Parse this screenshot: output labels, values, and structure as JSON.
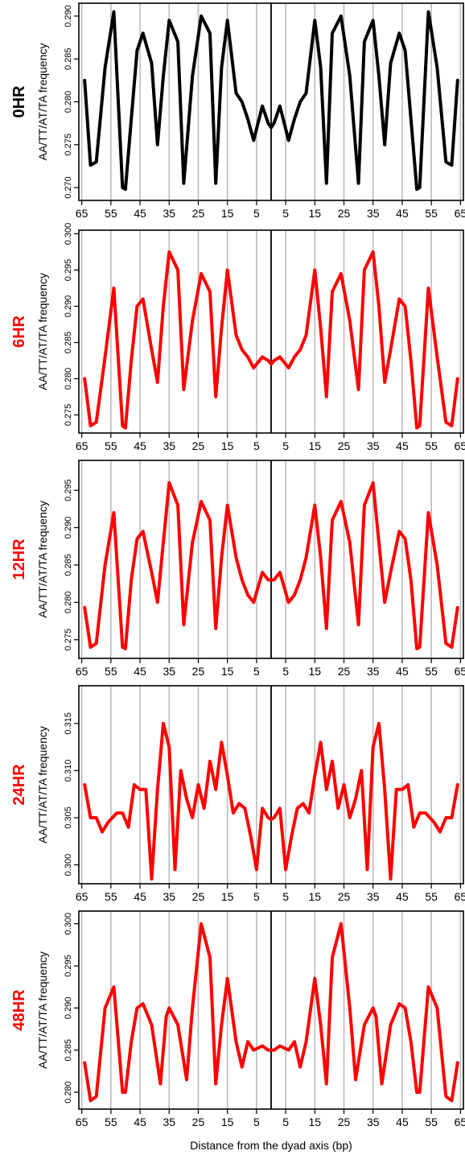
{
  "figure": {
    "xlabel": "Distance from the dyad axis (bp)",
    "colors": {
      "first": "#000000",
      "rest": "#ff0000",
      "grid": "#bbbbbb",
      "axis": "#000000"
    }
  },
  "chart_data": [
    {
      "type": "line",
      "panel_label": "0HR",
      "ylabel": "AA/TT/AT/TA frequency",
      "color": "#000000",
      "grid": true,
      "xlim": [
        -66,
        66
      ],
      "ylim": [
        0.2685,
        0.2915
      ],
      "y_ticks": [
        0.27,
        0.275,
        0.28,
        0.285,
        0.29
      ],
      "y_tick_labels": [
        "0.270",
        "0.275",
        "0.280",
        "0.285",
        "0.290"
      ],
      "x_ticks": [
        -65,
        -55,
        -45,
        -35,
        -25,
        -15,
        -5,
        5,
        15,
        25,
        35,
        45,
        55,
        65
      ],
      "x_tick_labels": [
        "65",
        "55",
        "45",
        "35",
        "25",
        "15",
        "5",
        "5",
        "15",
        "25",
        "35",
        "45",
        "55",
        "65"
      ],
      "x": [
        -64,
        -62,
        -60,
        -57,
        -54,
        -51,
        -50,
        -48,
        -46,
        -44,
        -41,
        -39,
        -37,
        -35,
        -32,
        -30,
        -27,
        -24,
        -21,
        -19,
        -17,
        -15,
        -12,
        -10,
        -8,
        -6,
        -3,
        -1,
        0,
        1,
        3,
        6,
        8,
        10,
        12,
        15,
        17,
        19,
        21,
        24,
        27,
        30,
        32,
        35,
        37,
        39,
        41,
        44,
        46,
        48,
        50,
        51,
        54,
        57,
        60,
        62,
        64
      ],
      "y": [
        0.2825,
        0.2726,
        0.273,
        0.284,
        0.2905,
        0.27,
        0.2698,
        0.278,
        0.286,
        0.288,
        0.2845,
        0.275,
        0.283,
        0.2895,
        0.287,
        0.2705,
        0.283,
        0.29,
        0.288,
        0.2705,
        0.284,
        0.2895,
        0.281,
        0.28,
        0.278,
        0.2755,
        0.2795,
        0.2775,
        0.277,
        0.2775,
        0.2795,
        0.2755,
        0.278,
        0.28,
        0.281,
        0.2895,
        0.284,
        0.2705,
        0.288,
        0.29,
        0.283,
        0.2705,
        0.287,
        0.2895,
        0.283,
        0.275,
        0.2845,
        0.288,
        0.286,
        0.278,
        0.2698,
        0.27,
        0.2905,
        0.284,
        0.273,
        0.2726,
        0.2825
      ]
    },
    {
      "type": "line",
      "panel_label": "6HR",
      "ylabel": "AA/TT/AT/TA frequency",
      "color": "#ff0000",
      "grid": true,
      "xlim": [
        -66,
        66
      ],
      "ylim": [
        0.2725,
        0.3005
      ],
      "y_ticks": [
        0.275,
        0.28,
        0.285,
        0.29,
        0.295,
        0.3
      ],
      "y_tick_labels": [
        "0.275",
        "0.280",
        "0.285",
        "0.290",
        "0.295",
        "0.300"
      ],
      "x_ticks": [
        -65,
        -55,
        -45,
        -35,
        -25,
        -15,
        -5,
        5,
        15,
        25,
        35,
        45,
        55,
        65
      ],
      "x_tick_labels": [
        "65",
        "55",
        "45",
        "35",
        "25",
        "15",
        "5",
        "5",
        "15",
        "25",
        "35",
        "45",
        "55",
        "65"
      ],
      "x": [
        -64,
        -62,
        -60,
        -57,
        -54,
        -51,
        -50,
        -48,
        -46,
        -44,
        -41,
        -39,
        -37,
        -35,
        -32,
        -30,
        -27,
        -24,
        -21,
        -19,
        -17,
        -15,
        -12,
        -10,
        -8,
        -6,
        -3,
        -1,
        0,
        1,
        3,
        6,
        8,
        10,
        12,
        15,
        17,
        19,
        21,
        24,
        27,
        30,
        32,
        35,
        37,
        39,
        41,
        44,
        46,
        48,
        50,
        51,
        54,
        57,
        60,
        62,
        64
      ],
      "y": [
        0.28,
        0.2735,
        0.274,
        0.283,
        0.2925,
        0.2735,
        0.2732,
        0.2825,
        0.29,
        0.291,
        0.284,
        0.2795,
        0.29,
        0.2975,
        0.295,
        0.2785,
        0.288,
        0.2945,
        0.292,
        0.2775,
        0.287,
        0.295,
        0.286,
        0.284,
        0.283,
        0.2815,
        0.283,
        0.2825,
        0.282,
        0.2825,
        0.283,
        0.2815,
        0.283,
        0.284,
        0.286,
        0.295,
        0.287,
        0.2775,
        0.292,
        0.2945,
        0.288,
        0.2785,
        0.295,
        0.2975,
        0.29,
        0.2795,
        0.284,
        0.291,
        0.29,
        0.2825,
        0.2732,
        0.2735,
        0.2925,
        0.283,
        0.274,
        0.2735,
        0.28
      ]
    },
    {
      "type": "line",
      "panel_label": "12HR",
      "ylabel": "AA/TT/AT/TA frequency",
      "color": "#ff0000",
      "grid": true,
      "xlim": [
        -66,
        66
      ],
      "ylim": [
        0.2725,
        0.299
      ],
      "y_ticks": [
        0.275,
        0.28,
        0.285,
        0.29,
        0.295
      ],
      "y_tick_labels": [
        "0.275",
        "0.280",
        "0.285",
        "0.290",
        "0.295"
      ],
      "x_ticks": [
        -65,
        -55,
        -45,
        -35,
        -25,
        -15,
        -5,
        5,
        15,
        25,
        35,
        45,
        55,
        65
      ],
      "x_tick_labels": [
        "65",
        "55",
        "45",
        "35",
        "25",
        "15",
        "5",
        "5",
        "15",
        "25",
        "35",
        "45",
        "55",
        "65"
      ],
      "x": [
        -64,
        -62,
        -60,
        -57,
        -54,
        -51,
        -50,
        -48,
        -46,
        -44,
        -41,
        -39,
        -37,
        -35,
        -32,
        -30,
        -27,
        -24,
        -21,
        -19,
        -17,
        -15,
        -12,
        -10,
        -8,
        -6,
        -3,
        -1,
        0,
        1,
        3,
        6,
        8,
        10,
        12,
        15,
        17,
        19,
        21,
        24,
        27,
        30,
        32,
        35,
        37,
        39,
        41,
        44,
        46,
        48,
        50,
        51,
        54,
        57,
        60,
        62,
        64
      ],
      "y": [
        0.2793,
        0.274,
        0.2745,
        0.285,
        0.292,
        0.274,
        0.2738,
        0.283,
        0.2885,
        0.2895,
        0.284,
        0.28,
        0.288,
        0.296,
        0.293,
        0.277,
        0.288,
        0.2935,
        0.291,
        0.2765,
        0.286,
        0.293,
        0.286,
        0.283,
        0.281,
        0.28,
        0.284,
        0.283,
        0.283,
        0.283,
        0.284,
        0.28,
        0.281,
        0.283,
        0.286,
        0.293,
        0.286,
        0.2765,
        0.291,
        0.2935,
        0.288,
        0.277,
        0.293,
        0.296,
        0.288,
        0.28,
        0.284,
        0.2895,
        0.2885,
        0.283,
        0.2738,
        0.274,
        0.292,
        0.285,
        0.2745,
        0.274,
        0.2793
      ]
    },
    {
      "type": "line",
      "panel_label": "24HR",
      "ylabel": "AA/TT/AT/TA frequency",
      "color": "#ff0000",
      "grid": true,
      "xlim": [
        -66,
        66
      ],
      "ylim": [
        0.298,
        0.319
      ],
      "y_ticks": [
        0.3,
        0.305,
        0.31,
        0.315
      ],
      "y_tick_labels": [
        "0.300",
        "0.305",
        "0.310",
        "0.315"
      ],
      "x_ticks": [
        -65,
        -55,
        -45,
        -35,
        -25,
        -15,
        -5,
        5,
        15,
        25,
        35,
        45,
        55,
        65
      ],
      "x_tick_labels": [
        "65",
        "55",
        "45",
        "35",
        "25",
        "15",
        "5",
        "5",
        "15",
        "25",
        "35",
        "45",
        "55",
        "65"
      ],
      "x": [
        -64,
        -62,
        -60,
        -58,
        -56,
        -53,
        -51,
        -49,
        -47,
        -45,
        -43,
        -41,
        -39,
        -37,
        -35,
        -33,
        -31,
        -29,
        -27,
        -25,
        -23,
        -21,
        -19,
        -17,
        -15,
        -13,
        -11,
        -9,
        -7,
        -5,
        -3,
        -1,
        0,
        1,
        3,
        5,
        7,
        9,
        11,
        13,
        15,
        17,
        19,
        21,
        23,
        25,
        27,
        29,
        31,
        33,
        35,
        37,
        39,
        41,
        43,
        45,
        47,
        49,
        51,
        53,
        56,
        58,
        60,
        62,
        64
      ],
      "y": [
        0.3085,
        0.305,
        0.305,
        0.3035,
        0.3045,
        0.3055,
        0.3055,
        0.304,
        0.3085,
        0.308,
        0.308,
        0.2985,
        0.308,
        0.315,
        0.3125,
        0.2995,
        0.31,
        0.307,
        0.305,
        0.3085,
        0.306,
        0.311,
        0.308,
        0.313,
        0.3095,
        0.3055,
        0.3065,
        0.306,
        0.303,
        0.2995,
        0.306,
        0.305,
        0.3048,
        0.305,
        0.306,
        0.2995,
        0.303,
        0.306,
        0.3065,
        0.3055,
        0.3095,
        0.313,
        0.308,
        0.311,
        0.306,
        0.3085,
        0.305,
        0.307,
        0.31,
        0.2995,
        0.3125,
        0.315,
        0.308,
        0.2985,
        0.308,
        0.308,
        0.3085,
        0.304,
        0.3055,
        0.3055,
        0.3045,
        0.3035,
        0.305,
        0.305,
        0.3085
      ]
    },
    {
      "type": "line",
      "panel_label": "48HR",
      "ylabel": "AA/TT/AT/TA frequency",
      "color": "#ff0000",
      "grid": true,
      "xlim": [
        -66,
        66
      ],
      "ylim": [
        0.278,
        0.3015
      ],
      "y_ticks": [
        0.28,
        0.285,
        0.29,
        0.295,
        0.3
      ],
      "y_tick_labels": [
        "0.280",
        "0.285",
        "0.290",
        "0.295",
        "0.300"
      ],
      "x_ticks": [
        -65,
        -55,
        -45,
        -35,
        -25,
        -15,
        -5,
        5,
        15,
        25,
        35,
        45,
        55,
        65
      ],
      "x_tick_labels": [
        "65",
        "55",
        "45",
        "35",
        "25",
        "15",
        "5",
        "5",
        "15",
        "25",
        "35",
        "45",
        "55",
        "65"
      ],
      "x": [
        -64,
        -62,
        -60,
        -57,
        -54,
        -51,
        -50,
        -48,
        -46,
        -44,
        -41,
        -38,
        -36,
        -35,
        -32,
        -29,
        -27,
        -24,
        -21,
        -19,
        -17,
        -15,
        -12,
        -10,
        -8,
        -6,
        -3,
        -1,
        0,
        1,
        3,
        6,
        8,
        10,
        12,
        15,
        17,
        19,
        21,
        24,
        27,
        29,
        32,
        35,
        36,
        38,
        41,
        44,
        46,
        48,
        50,
        51,
        54,
        57,
        60,
        62,
        64
      ],
      "y": [
        0.2835,
        0.279,
        0.2795,
        0.29,
        0.2925,
        0.28,
        0.28,
        0.286,
        0.29,
        0.2905,
        0.288,
        0.281,
        0.289,
        0.29,
        0.288,
        0.2815,
        0.29,
        0.3,
        0.296,
        0.281,
        0.288,
        0.2935,
        0.286,
        0.283,
        0.286,
        0.285,
        0.2855,
        0.285,
        0.285,
        0.285,
        0.2855,
        0.285,
        0.286,
        0.283,
        0.286,
        0.2935,
        0.288,
        0.281,
        0.296,
        0.3,
        0.29,
        0.2815,
        0.288,
        0.29,
        0.289,
        0.281,
        0.288,
        0.2905,
        0.29,
        0.286,
        0.28,
        0.28,
        0.2925,
        0.29,
        0.2795,
        0.279,
        0.2835
      ]
    }
  ]
}
